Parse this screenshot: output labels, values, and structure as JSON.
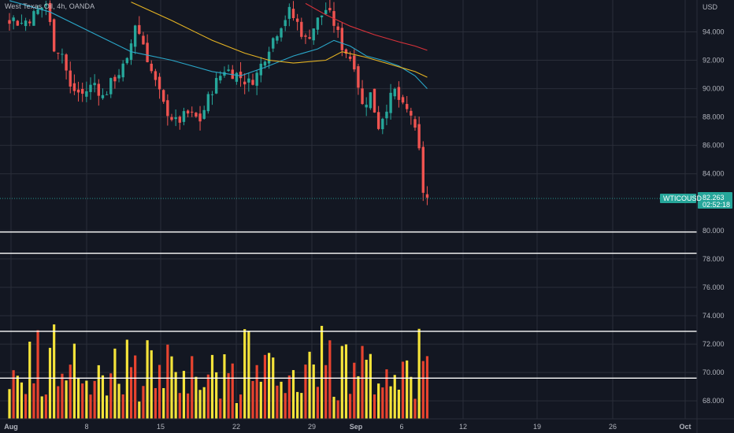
{
  "symbol": {
    "title": "West Texas Oil, 4h, OANDA"
  },
  "colors": {
    "background": "#131722",
    "grid": "#2a2e39",
    "up": "#26a69a",
    "down": "#ef5350",
    "volume_up": "#f4e33a",
    "volume_down": "#e8432f",
    "ma_fast": "#2aa7c9",
    "ma_mid": "#e6b422",
    "ma_slow": "#d9323a",
    "hline": "#ffffff",
    "price_tag": "#26a69a"
  },
  "price_axis": {
    "currency": "USD",
    "ticks": [
      "94.000",
      "92.000",
      "90.000",
      "88.000",
      "86.000",
      "84.000",
      "80.000",
      "78.000",
      "76.000",
      "74.000",
      "72.000",
      "70.000",
      "68.000"
    ]
  },
  "time_axis": {
    "ticks": [
      "Aug",
      "8",
      "15",
      "22",
      "29",
      "Sep",
      "6",
      "12",
      "19",
      "26",
      "Oct"
    ]
  },
  "last_price_tag": {
    "ticker": "WTICOUSD",
    "price": "82.263",
    "countdown": "02:52:18"
  },
  "chart_data": {
    "type": "candlestick",
    "instrument": "WTICOUSD",
    "interval": "4h",
    "ylim": [
      67.4,
      95.8
    ],
    "price_ticks": [
      94,
      92,
      90,
      88,
      86,
      84,
      80,
      78,
      76,
      74,
      72,
      70,
      68
    ],
    "horizontal_lines": [
      79.9,
      78.4,
      72.9,
      69.6
    ],
    "last_price": 82.263,
    "close_path": [
      [
        0,
        95.0
      ],
      [
        3,
        94.6
      ],
      [
        6,
        95.2
      ],
      [
        9,
        96.0
      ],
      [
        11,
        93.0
      ],
      [
        13,
        92.5
      ],
      [
        15,
        90.0
      ],
      [
        18,
        89.6
      ],
      [
        21,
        90.4
      ],
      [
        23,
        89.4
      ],
      [
        26,
        90.8
      ],
      [
        29,
        91.8
      ],
      [
        31,
        94.6
      ],
      [
        33,
        93.2
      ],
      [
        35,
        91.2
      ],
      [
        38,
        88.8
      ],
      [
        41,
        87.6
      ],
      [
        44,
        88.2
      ],
      [
        47,
        87.8
      ],
      [
        50,
        90.0
      ],
      [
        53,
        91.4
      ],
      [
        56,
        91.0
      ],
      [
        59,
        90.4
      ],
      [
        61,
        91.0
      ],
      [
        64,
        93.0
      ],
      [
        67,
        94.6
      ],
      [
        69,
        95.4
      ],
      [
        71,
        94.6
      ],
      [
        73,
        93.4
      ],
      [
        76,
        94.8
      ],
      [
        78,
        95.6
      ],
      [
        80,
        94.6
      ],
      [
        82,
        93.0
      ],
      [
        85,
        91.8
      ],
      [
        87,
        88.8
      ],
      [
        89,
        89.6
      ],
      [
        91,
        87.4
      ],
      [
        93,
        88.8
      ],
      [
        95,
        89.8
      ],
      [
        97,
        88.6
      ],
      [
        99,
        88.2
      ],
      [
        101,
        85.5
      ],
      [
        102,
        82.8
      ],
      [
        103,
        82.26
      ]
    ],
    "ma_fast": [
      [
        0,
        96.2
      ],
      [
        10,
        95.4
      ],
      [
        20,
        94.0
      ],
      [
        30,
        92.6
      ],
      [
        40,
        92.0
      ],
      [
        50,
        91.2
      ],
      [
        57,
        90.9
      ],
      [
        63,
        91.5
      ],
      [
        70,
        92.3
      ],
      [
        76,
        92.8
      ],
      [
        80,
        93.4
      ],
      [
        84,
        93.0
      ],
      [
        88,
        92.3
      ],
      [
        92,
        92.0
      ],
      [
        96,
        91.6
      ],
      [
        100,
        90.9
      ],
      [
        103,
        90.0
      ]
    ],
    "ma_mid": [
      [
        30,
        96.1
      ],
      [
        40,
        94.8
      ],
      [
        50,
        93.4
      ],
      [
        58,
        92.5
      ],
      [
        64,
        92.0
      ],
      [
        70,
        91.8
      ],
      [
        78,
        92.0
      ],
      [
        82,
        92.6
      ],
      [
        88,
        92.2
      ],
      [
        94,
        91.7
      ],
      [
        100,
        91.2
      ],
      [
        103,
        90.8
      ]
    ],
    "ma_slow": [
      [
        73,
        96.0
      ],
      [
        78,
        95.2
      ],
      [
        84,
        94.4
      ],
      [
        90,
        93.8
      ],
      [
        96,
        93.3
      ],
      [
        100,
        93.0
      ],
      [
        103,
        92.7
      ]
    ],
    "volume_pattern": [
      1,
      0,
      1,
      1,
      0,
      1,
      0,
      0,
      1,
      0,
      1,
      1,
      0,
      0,
      1,
      0,
      1,
      1,
      0,
      1,
      0,
      0,
      1,
      1
    ],
    "volume_heights": [
      0.35,
      0.85,
      0.45,
      0.6,
      0.3,
      0.95,
      0.4,
      0.55,
      0.25,
      0.75,
      0.5,
      0.9,
      0.35,
      0.45,
      0.65,
      0.3,
      0.8,
      0.4,
      0.55,
      0.7,
      0.35,
      0.5,
      0.95,
      0.6
    ]
  }
}
